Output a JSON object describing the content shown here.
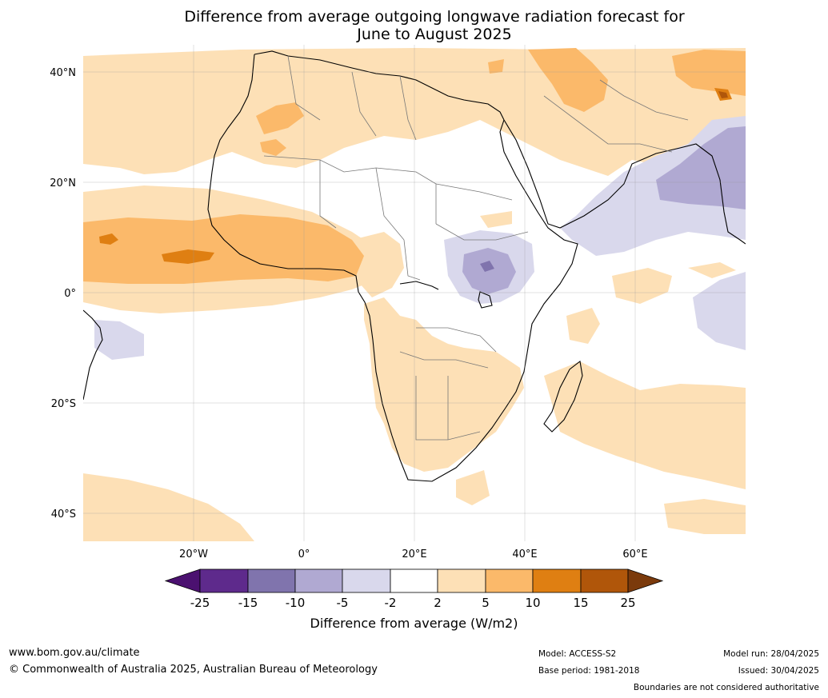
{
  "title_lines": [
    "Difference from average outgoing longwave radiation forecast for",
    "June to August 2025"
  ],
  "map": {
    "lat_labels": [
      "40°N",
      "20°N",
      "0°",
      "20°S",
      "40°S"
    ],
    "lon_labels": [
      "20°W",
      "0°",
      "20°E",
      "40°E",
      "60°E"
    ]
  },
  "colorbar": {
    "ticks": [
      "-25",
      "-15",
      "-10",
      "-5",
      "-2",
      "2",
      "5",
      "10",
      "15",
      "25"
    ],
    "colors": [
      "#4b1170",
      "#5e2a8c",
      "#8074ad",
      "#b0a9d2",
      "#d9d8ec",
      "#ffffff",
      "#fde0b6",
      "#fbb96a",
      "#df7f12",
      "#b0560a",
      "#7b3a0c"
    ],
    "label": "Difference from average (W/m2)"
  },
  "footer": {
    "url": "www.bom.gov.au/climate",
    "copyright": "© Commonwealth of Australia 2025, Australian Bureau of Meteorology",
    "model": "Model: ACCESS-S2",
    "base_period": "Base period: 1981-2018",
    "model_run": "Model run: 28/04/2025",
    "issued": "Issued: 30/04/2025",
    "disclaimer": "Boundaries are not considered authoritative"
  }
}
